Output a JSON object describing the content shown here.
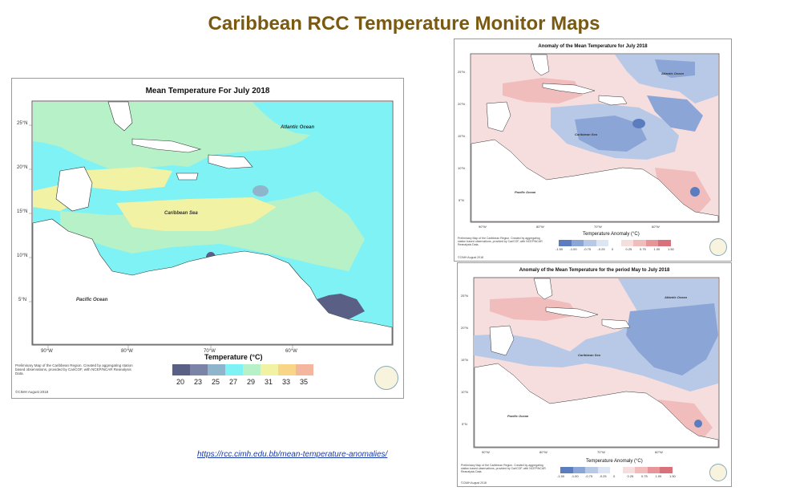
{
  "slide_title": "Caribbean RCC Temperature Monitor Maps",
  "source_link": "https://rcc.cimh.edu.bb/mean-temperature-anomalies/",
  "main_map": {
    "title": "Mean Temperature For July 2018",
    "lat_labels": [
      "25°N",
      "20°N",
      "15°N",
      "10°N",
      "5°N"
    ],
    "lon_labels": [
      "90°W",
      "80°W",
      "70°W",
      "60°W"
    ],
    "place_labels": {
      "atlantic": "Atlantic Ocean",
      "caribbean": "Caribbean Sea",
      "pacific": "Pacific Ocean"
    },
    "legend_title": "Temperature (°C)",
    "legend_ticks": [
      "20",
      "23",
      "25",
      "27",
      "29",
      "31",
      "33",
      "35"
    ],
    "legend_colors": [
      "#5a5f86",
      "#7b84a6",
      "#8fb5cc",
      "#7ef2f5",
      "#b6f1c8",
      "#f1f2a4",
      "#f8d587",
      "#f5b6a0"
    ],
    "caption": "Preliminary Map of the Caribbean Region. Created by aggregating station based observations, provided by CariCOF, with NCEP/NCAR Reanalysis Data.",
    "credit": "©CIMH August 2018"
  },
  "anomaly_map_1": {
    "title": "Anomaly of the Mean Temperature for July 2018",
    "lat_labels": [
      "25°N",
      "20°N",
      "15°N",
      "10°N",
      "5°N"
    ],
    "lon_labels": [
      "90°W",
      "80°W",
      "70°W",
      "60°W"
    ],
    "place_labels": {
      "atlantic": "Atlantic Ocean",
      "caribbean": "Caribbean Sea",
      "pacific": "Pacific Ocean"
    },
    "legend_title": "Temperature Anomaly (°C)",
    "legend_ticks": [
      "-1.50",
      "-1.00",
      "-0.75",
      "-0.25",
      "0",
      "0.25",
      "0.75",
      "1.00",
      "1.50"
    ],
    "caption": "Preliminary Map of the Caribbean Region. Created by aggregating station based observations, provided by CariCOF, with NCEP/NCAR Reanalysis Data.",
    "credit": "©CIMH August 2018"
  },
  "anomaly_map_2": {
    "title": "Anomaly of the Mean Temperature for the period May to July 2018",
    "lat_labels": [
      "25°N",
      "20°N",
      "15°N",
      "10°N",
      "5°N"
    ],
    "lon_labels": [
      "90°W",
      "80°W",
      "70°W",
      "60°W"
    ],
    "place_labels": {
      "atlantic": "Atlantic Ocean",
      "caribbean": "Caribbean Sea",
      "pacific": "Pacific Ocean"
    },
    "legend_title": "Temperature Anomaly (°C)",
    "legend_ticks": [
      "-1.50",
      "-1.00",
      "-0.75",
      "-0.25",
      "0",
      "0.25",
      "0.75",
      "1.00",
      "1.50"
    ],
    "caption": "Preliminary Map of the Caribbean Region. Created by aggregating station based observations, provided by CariCOF, with NCEP/NCAR Reanalysis Data.",
    "credit": "©CIMH August 2018"
  },
  "anomaly_colors": [
    "#5b7dbf",
    "#8ba5d6",
    "#b7c9e6",
    "#dce5f2",
    "#ffffff",
    "#f7dede",
    "#f1bcbc",
    "#e8959a",
    "#d9717b"
  ]
}
